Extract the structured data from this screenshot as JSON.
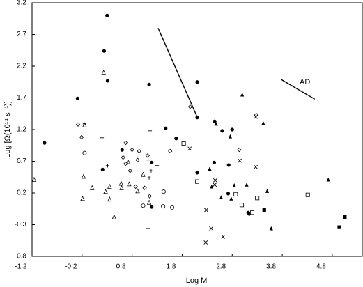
{
  "chart_data": {
    "type": "scatter",
    "x_label": "Log M",
    "y_label": "Log [Ω(10¹⁴ s⁻¹)]",
    "annotation": "AD",
    "xlim": [
      -1.2,
      5.4
    ],
    "xticks": [
      -1.2,
      -0.2,
      0.8,
      1.8,
      2.8,
      3.8,
      4.8
    ],
    "ylim": [
      -0.8,
      3.2
    ],
    "yticks": [
      -0.8,
      -0.3,
      0.2,
      0.7,
      1.2,
      1.7,
      2.2,
      2.7,
      3.2
    ],
    "series": [
      {
        "marker": "filled-circle",
        "color": "#000",
        "x": [
          -0.95,
          -0.29,
          0.3,
          0.24,
          0.31,
          1.14,
          2.1,
          1.47,
          2.1,
          2.45,
          2.6,
          2.8,
          0.21,
          0.6,
          1.19,
          2.44,
          2.73,
          2.1,
          1.68,
          3.12,
          3.14,
          2.72,
          1.19
        ],
        "y": [
          0.99,
          1.69,
          3.0,
          2.44,
          1.97,
          1.91,
          1.95,
          1.22,
          1.39,
          1.33,
          1.18,
          1.2,
          0.57,
          0.88,
          -0.02,
          0.68,
          0.64,
          0.52,
          1.06,
          -0.11,
          -0.13,
          0.19,
          0.68
        ]
      },
      {
        "marker": "open-triangle",
        "color": "#000",
        "x": [
          0.23,
          -0.15,
          -1.16,
          -0.19,
          -0.17,
          0.0,
          0.35,
          0.44,
          0.59,
          0.74,
          0.91,
          0.72,
          1.02,
          0.27,
          0.35,
          1.14,
          0.58
        ],
        "y": [
          2.1,
          1.27,
          0.41,
          0.11,
          0.46,
          0.28,
          0.1,
          -0.18,
          0.28,
          0.34,
          0.23,
          0.69,
          0.49,
          0.22,
          0.3,
          0.05,
          0.35
        ]
      },
      {
        "marker": "open-diamond",
        "color": "#000",
        "x": [
          -0.28,
          -0.21,
          0.67,
          0.8,
          0.94,
          0.67,
          0.91,
          1.11,
          1.56,
          1.96,
          2.94,
          1.05,
          1.15,
          0.87,
          0.76,
          3.28,
          0.62
        ],
        "y": [
          1.28,
          1.08,
          0.99,
          0.88,
          0.86,
          0.66,
          0.72,
          0.79,
          0.86,
          1.56,
          0.88,
          0.28,
          0.15,
          0.3,
          0.55,
          1.43,
          0.76
        ]
      },
      {
        "marker": "plus",
        "color": "#000",
        "x": [
          0.2,
          0.31,
          1.16,
          1.12,
          1.18,
          1.14
        ],
        "y": [
          1.07,
          0.63,
          1.18,
          0.72,
          0.55,
          0.44
        ]
      },
      {
        "marker": "cross",
        "color": "#000",
        "x": [
          1.95,
          2.45,
          2.46,
          2.28,
          2.38,
          2.27,
          2.62,
          2.95,
          3.27,
          3.27
        ],
        "y": [
          0.9,
          0.33,
          0.4,
          -0.07,
          -0.36,
          -0.58,
          -0.49,
          0.71,
          0.61,
          1.4
        ]
      },
      {
        "marker": "open-square",
        "color": "#000",
        "x": [
          1.83,
          2.1,
          2.87,
          2.99,
          3.2,
          3.3,
          4.31
        ],
        "y": [
          0.98,
          0.38,
          0.18,
          0.01,
          -0.11,
          0.12,
          0.17
        ]
      },
      {
        "marker": "filled-triangle",
        "color": "#000",
        "x": [
          3.0,
          3.42,
          2.76,
          3.09,
          2.39,
          2.35,
          2.84,
          2.78,
          2.58,
          3.5,
          3.58,
          4.72,
          2.48
        ],
        "y": [
          1.75,
          1.3,
          1.09,
          0.33,
          0.3,
          0.58,
          0.32,
          0.11,
          0.13,
          0.23,
          -0.36,
          0.41,
          1.29
        ]
      },
      {
        "marker": "filled-square",
        "color": "#000",
        "x": [
          3.44,
          4.94,
          5.05
        ],
        "y": [
          -0.07,
          -0.34,
          -0.18
        ]
      },
      {
        "marker": "open-circle",
        "color": "#000",
        "x": [
          -0.15,
          1.42,
          1.6,
          1.02,
          1.43
        ],
        "y": [
          0.83,
          -0.01,
          -0.03,
          0.0,
          0.22
        ]
      },
      {
        "marker": "dash",
        "color": "#000",
        "x": [
          -0.15,
          1.3,
          1.12
        ],
        "y": [
          1.29,
          0.63,
          -0.36
        ]
      },
      {
        "marker": "line",
        "color": "#000",
        "x": [
          1.32,
          2.11
        ],
        "y": [
          2.8,
          1.38
        ]
      },
      {
        "marker": "line",
        "color": "#000",
        "x": [
          3.78,
          4.45
        ],
        "y": [
          1.99,
          1.68
        ]
      }
    ]
  }
}
